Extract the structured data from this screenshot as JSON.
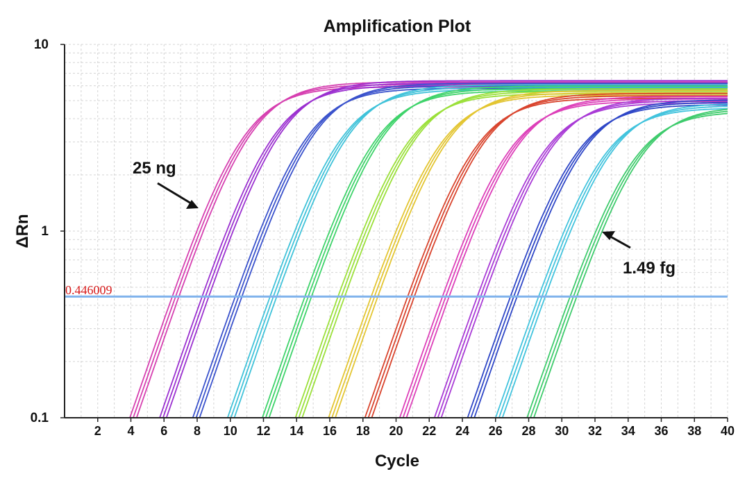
{
  "chart_data": {
    "type": "line",
    "title": "Amplification Plot",
    "xlabel": "Cycle",
    "ylabel": "ΔRn",
    "xlim": [
      0,
      40
    ],
    "ylim": [
      0.1,
      10
    ],
    "yscale": "log",
    "x_ticks": [
      "2",
      "4",
      "6",
      "8",
      "10",
      "12",
      "14",
      "16",
      "18",
      "20",
      "22",
      "24",
      "26",
      "28",
      "30",
      "32",
      "34",
      "36",
      "38",
      "40"
    ],
    "y_ticks": [
      "0.1",
      "1",
      "10"
    ],
    "y_tick_values": [
      0.1,
      1,
      10
    ],
    "grid": true,
    "threshold": {
      "value": 0.446009,
      "label": "0.446009",
      "color": "#7fb2ec"
    },
    "dilution_groups": [
      {
        "color": "#d63fb0",
        "threshold_cycles": [
          6.5,
          6.7,
          6.9
        ],
        "plateau": 6.1
      },
      {
        "color": "#9b30d0",
        "threshold_cycles": [
          8.3,
          8.5,
          8.7
        ],
        "plateau": 6.2
      },
      {
        "color": "#3a52cc",
        "threshold_cycles": [
          10.3,
          10.5,
          10.7
        ],
        "plateau": 6.0
      },
      {
        "color": "#3fc2d9",
        "threshold_cycles": [
          12.4,
          12.6,
          12.8
        ],
        "plateau": 5.9
      },
      {
        "color": "#3ed36a",
        "threshold_cycles": [
          14.5,
          14.7,
          14.9
        ],
        "plateau": 5.8
      },
      {
        "color": "#9be03a",
        "threshold_cycles": [
          16.5,
          16.7,
          16.9
        ],
        "plateau": 5.6
      },
      {
        "color": "#e3c531",
        "threshold_cycles": [
          18.5,
          18.7,
          18.9
        ],
        "plateau": 5.5
      },
      {
        "color": "#d9442d",
        "threshold_cycles": [
          20.7,
          20.9,
          21.1
        ],
        "plateau": 5.3
      },
      {
        "color": "#dd3fb9",
        "threshold_cycles": [
          22.8,
          23.0,
          23.2
        ],
        "plateau": 5.1
      },
      {
        "color": "#a93bd6",
        "threshold_cycles": [
          24.9,
          25.1,
          25.3
        ],
        "plateau": 5.0
      },
      {
        "color": "#2f47c7",
        "threshold_cycles": [
          26.9,
          27.1,
          27.3
        ],
        "plateau": 4.9
      },
      {
        "color": "#41c3dd",
        "threshold_cycles": [
          28.6,
          28.8,
          29.0
        ],
        "plateau": 4.7
      },
      {
        "color": "#3ecb6c",
        "threshold_cycles": [
          30.5,
          30.7,
          30.9
        ],
        "plateau": 4.5
      }
    ],
    "annotations": [
      {
        "text": "25 ng"
      },
      {
        "text": "1.49 fg"
      }
    ]
  }
}
